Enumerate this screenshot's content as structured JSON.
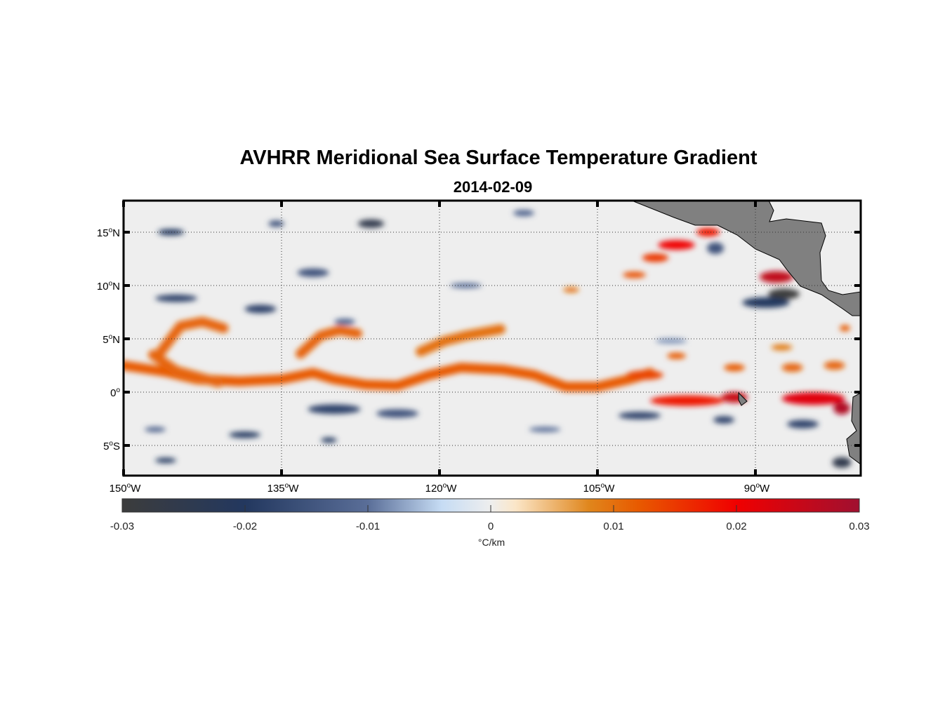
{
  "chart_data": {
    "type": "heatmap",
    "title": "AVHRR Meridional Sea Surface Temperature Gradient",
    "subtitle": "2014-02-09",
    "lon_range": [
      -150,
      -80
    ],
    "lat_range": [
      -8,
      18
    ],
    "grid": true,
    "x_ticks": [
      {
        "value": -150,
        "num": "150",
        "hemi": "W"
      },
      {
        "value": -135,
        "num": "135",
        "hemi": "W"
      },
      {
        "value": -120,
        "num": "120",
        "hemi": "W"
      },
      {
        "value": -105,
        "num": "105",
        "hemi": "W"
      },
      {
        "value": -90,
        "num": "90",
        "hemi": "W"
      }
    ],
    "y_ticks": [
      {
        "value": 15,
        "num": "15",
        "hemi": "N"
      },
      {
        "value": 10,
        "num": "10",
        "hemi": "N"
      },
      {
        "value": 5,
        "num": "5",
        "hemi": "N"
      },
      {
        "value": 0,
        "num": "0",
        "hemi": ""
      },
      {
        "value": -5,
        "num": "5",
        "hemi": "S"
      }
    ],
    "colorbar": {
      "range": [
        -0.03,
        0.03
      ],
      "ticks": [
        "-0.03",
        "-0.02",
        "-0.01",
        "0",
        "0.01",
        "0.02",
        "0.03"
      ],
      "tick_values": [
        -0.03,
        -0.02,
        -0.01,
        0,
        0.01,
        0.02,
        0.03
      ],
      "label": "°C/km",
      "stops": [
        {
          "v": -0.03,
          "c": "#3c3c3c"
        },
        {
          "v": -0.02,
          "c": "#23385f"
        },
        {
          "v": -0.01,
          "c": "#5a6e98"
        },
        {
          "v": -0.004,
          "c": "#c6dcf4"
        },
        {
          "v": 0,
          "c": "#eeeeee"
        },
        {
          "v": 0.002,
          "c": "#fbe6c8"
        },
        {
          "v": 0.008,
          "c": "#e0861c"
        },
        {
          "v": 0.012,
          "c": "#e85a00"
        },
        {
          "v": 0.02,
          "c": "#f00000"
        },
        {
          "v": 0.03,
          "c": "#a01030"
        }
      ]
    },
    "fronts": [
      {
        "value": 0.012,
        "points": [
          [
            -150,
            2.5
          ],
          [
            -146,
            1.9
          ],
          [
            -143,
            1.2
          ],
          [
            -139,
            1.0
          ],
          [
            -135,
            1.2
          ],
          [
            -132,
            1.8
          ],
          [
            -130,
            1.2
          ],
          [
            -127,
            0.7
          ],
          [
            -124,
            0.6
          ],
          [
            -121,
            1.6
          ],
          [
            -118,
            2.3
          ],
          [
            -114,
            2.1
          ],
          [
            -111,
            1.6
          ],
          [
            -108,
            0.5
          ],
          [
            -105,
            0.5
          ],
          [
            -102,
            1.2
          ],
          [
            -100,
            1.8
          ]
        ]
      },
      {
        "value": 0.011,
        "points": [
          [
            -146.6,
            3.6
          ],
          [
            -144.6,
            6.2
          ],
          [
            -142.5,
            6.6
          ],
          [
            -140.5,
            6.0
          ]
        ]
      },
      {
        "value": 0.011,
        "points": [
          [
            -133.2,
            3.6
          ],
          [
            -131.3,
            5.3
          ],
          [
            -129.5,
            5.8
          ],
          [
            -127.8,
            5.5
          ]
        ]
      },
      {
        "value": 0.01,
        "points": [
          [
            -121.8,
            3.8
          ],
          [
            -119.5,
            4.8
          ],
          [
            -117.5,
            5.3
          ],
          [
            -114.2,
            5.9
          ]
        ]
      },
      {
        "value": 0.011,
        "points": [
          [
            -147.2,
            3.5
          ],
          [
            -145,
            2.0
          ],
          [
            -141,
            0.9
          ]
        ]
      }
    ],
    "blobs": [
      {
        "lon": -96.5,
        "lat": -0.8,
        "w": 7,
        "h": 1.0,
        "value": 0.018
      },
      {
        "lon": -92,
        "lat": -0.5,
        "w": 2.5,
        "h": 1.0,
        "value": 0.025
      },
      {
        "lon": -84.5,
        "lat": -0.6,
        "w": 6,
        "h": 1.2,
        "value": 0.022
      },
      {
        "lon": -81.8,
        "lat": -1.5,
        "w": 1.6,
        "h": 1.2,
        "value": 0.028
      },
      {
        "lon": -88,
        "lat": 10.8,
        "w": 3.2,
        "h": 1.1,
        "value": 0.026
      },
      {
        "lon": -87.3,
        "lat": 9.2,
        "w": 3.0,
        "h": 1.0,
        "value": -0.03
      },
      {
        "lon": -89,
        "lat": 8.4,
        "w": 4.5,
        "h": 1.0,
        "value": -0.02
      },
      {
        "lon": -97.5,
        "lat": 13.8,
        "w": 3.5,
        "h": 0.9,
        "value": 0.02
      },
      {
        "lon": -99.5,
        "lat": 12.6,
        "w": 2.5,
        "h": 0.8,
        "value": 0.015
      },
      {
        "lon": -94.5,
        "lat": 15.0,
        "w": 2.2,
        "h": 0.8,
        "value": 0.018
      },
      {
        "lon": -93.8,
        "lat": 13.5,
        "w": 1.6,
        "h": 1.1,
        "value": -0.015
      },
      {
        "lon": -101.5,
        "lat": 11.0,
        "w": 2.2,
        "h": 0.6,
        "value": 0.013
      },
      {
        "lon": -107.5,
        "lat": 9.6,
        "w": 1.5,
        "h": 0.5,
        "value": 0.01
      },
      {
        "lon": -100.5,
        "lat": 1.6,
        "w": 3.5,
        "h": 0.9,
        "value": 0.014
      },
      {
        "lon": -97.5,
        "lat": 3.4,
        "w": 1.8,
        "h": 0.6,
        "value": 0.012
      },
      {
        "lon": -92,
        "lat": 2.3,
        "w": 2.0,
        "h": 0.7,
        "value": 0.012
      },
      {
        "lon": -86.5,
        "lat": 2.3,
        "w": 2.0,
        "h": 0.8,
        "value": 0.011
      },
      {
        "lon": -82.5,
        "lat": 2.5,
        "w": 2.0,
        "h": 0.8,
        "value": 0.011
      },
      {
        "lon": -87.5,
        "lat": 4.2,
        "w": 2.0,
        "h": 0.6,
        "value": 0.009
      },
      {
        "lon": -81.5,
        "lat": 6.0,
        "w": 1.0,
        "h": 0.6,
        "value": 0.012
      },
      {
        "lon": -145.5,
        "lat": 15.0,
        "w": 2.5,
        "h": 0.6,
        "value": -0.02
      },
      {
        "lon": -126.5,
        "lat": 15.8,
        "w": 2.5,
        "h": 0.8,
        "value": -0.025
      },
      {
        "lon": -135.5,
        "lat": 15.8,
        "w": 1.5,
        "h": 0.6,
        "value": -0.015
      },
      {
        "lon": -132,
        "lat": 11.2,
        "w": 3.0,
        "h": 0.8,
        "value": -0.015
      },
      {
        "lon": -145,
        "lat": 8.8,
        "w": 4.0,
        "h": 0.7,
        "value": -0.018
      },
      {
        "lon": -137,
        "lat": 7.8,
        "w": 3.0,
        "h": 0.8,
        "value": -0.018
      },
      {
        "lon": -129,
        "lat": 6.6,
        "w": 2.0,
        "h": 0.6,
        "value": -0.012
      },
      {
        "lon": -117.5,
        "lat": 10.0,
        "w": 3.0,
        "h": 0.5,
        "value": -0.01
      },
      {
        "lon": -130,
        "lat": -1.6,
        "w": 5.0,
        "h": 0.9,
        "value": -0.018
      },
      {
        "lon": -124,
        "lat": -2.0,
        "w": 4.0,
        "h": 0.8,
        "value": -0.015
      },
      {
        "lon": -138.5,
        "lat": -4.0,
        "w": 3.0,
        "h": 0.6,
        "value": -0.02
      },
      {
        "lon": -130.5,
        "lat": -4.5,
        "w": 1.5,
        "h": 0.5,
        "value": -0.02
      },
      {
        "lon": -146,
        "lat": -6.4,
        "w": 2.0,
        "h": 0.5,
        "value": -0.02
      },
      {
        "lon": -147,
        "lat": -3.5,
        "w": 2.0,
        "h": 0.5,
        "value": -0.012
      },
      {
        "lon": -101,
        "lat": -2.2,
        "w": 4.0,
        "h": 0.7,
        "value": -0.018
      },
      {
        "lon": -93,
        "lat": -2.6,
        "w": 2.0,
        "h": 0.7,
        "value": -0.018
      },
      {
        "lon": -85.5,
        "lat": -3.0,
        "w": 3.0,
        "h": 0.8,
        "value": -0.018
      },
      {
        "lon": -81.8,
        "lat": -6.6,
        "w": 1.8,
        "h": 1.0,
        "value": -0.025
      },
      {
        "lon": -110,
        "lat": -3.5,
        "w": 3.0,
        "h": 0.5,
        "value": -0.01
      },
      {
        "lon": -98,
        "lat": 4.8,
        "w": 3.0,
        "h": 0.5,
        "value": -0.008
      },
      {
        "lon": -112,
        "lat": 16.8,
        "w": 2.0,
        "h": 0.6,
        "value": -0.012
      }
    ]
  }
}
